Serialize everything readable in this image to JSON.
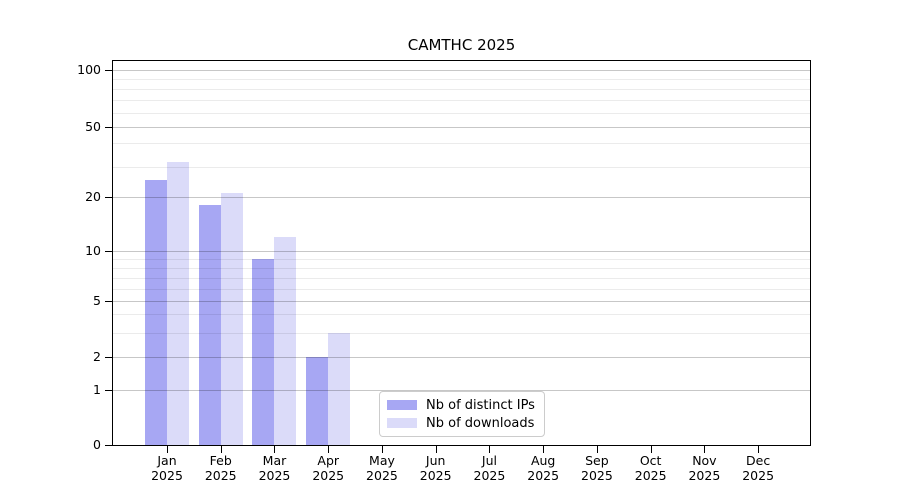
{
  "figure": {
    "title": "CAMTHC 2025"
  },
  "chart_data": {
    "type": "bar",
    "title": "CAMTHC 2025",
    "categories": [
      "Jan 2025",
      "Feb 2025",
      "Mar 2025",
      "Apr 2025",
      "May 2025",
      "Jun 2025",
      "Jul 2025",
      "Aug 2025",
      "Sep 2025",
      "Oct 2025",
      "Nov 2025",
      "Dec 2025"
    ],
    "x_months": [
      "Jan",
      "Feb",
      "Mar",
      "Apr",
      "May",
      "Jun",
      "Jul",
      "Aug",
      "Sep",
      "Oct",
      "Nov",
      "Dec"
    ],
    "x_year": "2025",
    "series": [
      {
        "name": "Nb of distinct IPs",
        "color": "#a7a7f3",
        "values": [
          25,
          18,
          9,
          2,
          0,
          0,
          0,
          0,
          0,
          0,
          0,
          0
        ]
      },
      {
        "name": "Nb of downloads",
        "color": "#dbdbf9",
        "values": [
          32,
          21,
          12,
          3,
          0,
          0,
          0,
          0,
          0,
          0,
          0,
          0
        ]
      }
    ],
    "yaxis": {
      "scale": "log-like",
      "tick_labels": [
        "100",
        "50",
        "20",
        "10",
        "5",
        "2",
        "1",
        "0"
      ],
      "ylim": [
        0,
        110
      ],
      "grid": true
    },
    "legend": {
      "position": "lower center",
      "entries": [
        "Nb of distinct IPs",
        "Nb of downloads"
      ]
    }
  }
}
